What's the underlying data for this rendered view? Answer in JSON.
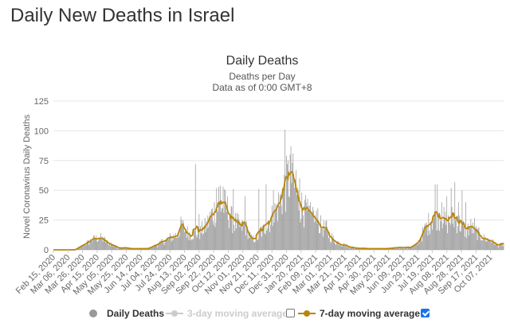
{
  "page": {
    "heading": "Daily New Deaths in Israel"
  },
  "chart_data": {
    "type": "bar",
    "title": "Daily Deaths",
    "subtitle": "Deaths per Day",
    "subtitle2": "Data as of 0:00 GMT+8",
    "ylabel": "Novel Coronavirus Daily Deaths",
    "xlabel": "",
    "ylim": [
      0,
      125
    ],
    "yticks": [
      0,
      25,
      50,
      75,
      100,
      125
    ],
    "grid": true,
    "x_labels": [
      "Feb 15, 2020",
      "Mar 06, 2020",
      "Mar 26, 2020",
      "Apr 15, 2020",
      "May 05, 2020",
      "May 25, 2020",
      "Jun 14, 2020",
      "Jul 04, 2020",
      "Jul 24, 2020",
      "Aug 13, 2020",
      "Sep 02, 2020",
      "Sep 22, 2020",
      "Oct 12, 2020",
      "Nov 01, 2020",
      "Nov 21, 2020",
      "Dec 11, 2020",
      "Dec 31, 2020",
      "Jan 20, 2021",
      "Feb 09, 2021",
      "Mar 01, 2021",
      "Mar 21, 2021",
      "Apr 10, 2021",
      "Apr 30, 2021",
      "May 20, 2021",
      "Jun 09, 2021",
      "Jun 29, 2021",
      "Jul 19, 2021",
      "Aug 08, 2021",
      "Aug 28, 2021",
      "Sep 17, 2021",
      "Oct 07, 2021"
    ],
    "start_date": "Feb 15, 2020",
    "days": 618,
    "anchors": [
      [
        0,
        0
      ],
      [
        30,
        0
      ],
      [
        45,
        5
      ],
      [
        55,
        9
      ],
      [
        65,
        10
      ],
      [
        75,
        6
      ],
      [
        90,
        2
      ],
      [
        110,
        1
      ],
      [
        130,
        1
      ],
      [
        145,
        5
      ],
      [
        160,
        10
      ],
      [
        170,
        12
      ],
      [
        176,
        21
      ],
      [
        183,
        15
      ],
      [
        190,
        13
      ],
      [
        200,
        14
      ],
      [
        210,
        20
      ],
      [
        218,
        30
      ],
      [
        226,
        36
      ],
      [
        233,
        38
      ],
      [
        238,
        35
      ],
      [
        245,
        25
      ],
      [
        252,
        22
      ],
      [
        258,
        18
      ],
      [
        262,
        22
      ],
      [
        267,
        15
      ],
      [
        272,
        9
      ],
      [
        280,
        10
      ],
      [
        290,
        18
      ],
      [
        298,
        25
      ],
      [
        305,
        32
      ],
      [
        312,
        42
      ],
      [
        318,
        52
      ],
      [
        322,
        58
      ],
      [
        326,
        63
      ],
      [
        330,
        55
      ],
      [
        336,
        42
      ],
      [
        342,
        35
      ],
      [
        350,
        29
      ],
      [
        358,
        26
      ],
      [
        365,
        21
      ],
      [
        375,
        16
      ],
      [
        385,
        8
      ],
      [
        395,
        5
      ],
      [
        410,
        2
      ],
      [
        430,
        1
      ],
      [
        460,
        1
      ],
      [
        475,
        2
      ],
      [
        490,
        2
      ],
      [
        500,
        5
      ],
      [
        510,
        17
      ],
      [
        518,
        25
      ],
      [
        525,
        30
      ],
      [
        532,
        28
      ],
      [
        540,
        22
      ],
      [
        548,
        27
      ],
      [
        555,
        24
      ],
      [
        560,
        20
      ],
      [
        566,
        15
      ],
      [
        572,
        20
      ],
      [
        580,
        15
      ],
      [
        590,
        10
      ],
      [
        600,
        8
      ],
      [
        605,
        6
      ],
      [
        610,
        4
      ],
      [
        618,
        5
      ]
    ],
    "spikes": [
      [
        195,
        72
      ],
      [
        200,
        30
      ],
      [
        224,
        52
      ],
      [
        227,
        53
      ],
      [
        229,
        54
      ],
      [
        233,
        53
      ],
      [
        247,
        51
      ],
      [
        263,
        45
      ],
      [
        282,
        51
      ],
      [
        292,
        55
      ],
      [
        302,
        50
      ],
      [
        318,
        101
      ],
      [
        322,
        75
      ],
      [
        325,
        80
      ],
      [
        328,
        73
      ],
      [
        333,
        67
      ],
      [
        338,
        60
      ],
      [
        345,
        42
      ],
      [
        356,
        36
      ],
      [
        363,
        35
      ],
      [
        375,
        25
      ],
      [
        524,
        55
      ],
      [
        527,
        55
      ],
      [
        533,
        40
      ],
      [
        540,
        45
      ],
      [
        546,
        52
      ],
      [
        551,
        57
      ],
      [
        556,
        40
      ],
      [
        561,
        50
      ],
      [
        566,
        40
      ],
      [
        578,
        27
      ]
    ],
    "series": [
      {
        "name": "Daily Deaths",
        "color": "#999999",
        "kind": "bar"
      },
      {
        "name": "3-day moving average",
        "color": "#cccccc",
        "kind": "line"
      },
      {
        "name": "7-day moving average",
        "color": "#b8860b",
        "kind": "line"
      }
    ]
  },
  "legend": [
    {
      "label": "Daily Deaths",
      "visible": true,
      "checkbox": false
    },
    {
      "label": "3-day moving average",
      "visible": false,
      "checkbox": true,
      "checked": false
    },
    {
      "label": "7-day moving average",
      "visible": true,
      "checkbox": true,
      "checked": true
    }
  ]
}
